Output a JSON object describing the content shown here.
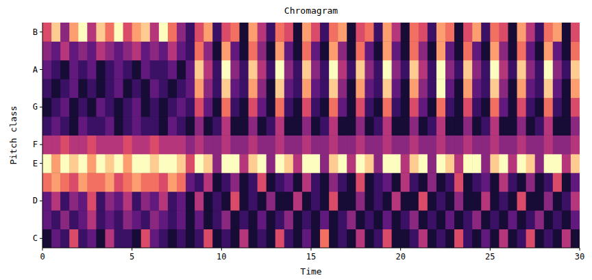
{
  "chart_data": {
    "type": "heatmap",
    "title": "Chromagram",
    "x_label": "Time",
    "y_label": "Pitch class",
    "categories": [
      "C",
      null,
      "D",
      null,
      "E",
      "F",
      null,
      "G",
      null,
      "A",
      null,
      "B"
    ],
    "x": [
      0,
      0.5,
      1,
      1.5,
      2,
      2.5,
      3,
      3.5,
      4,
      4.5,
      5,
      5.5,
      6,
      6.5,
      7,
      7.5,
      8,
      8.5,
      9,
      9.5,
      10,
      10.5,
      11,
      11.5,
      12,
      12.5,
      13,
      13.5,
      14,
      14.5,
      15,
      15.5,
      16,
      16.5,
      17,
      17.5,
      18,
      18.5,
      19,
      19.5,
      20,
      20.5,
      21,
      21.5,
      22,
      22.5,
      23,
      23.5,
      24,
      24.5,
      25,
      25.5,
      26,
      26.5,
      27,
      27.5,
      28,
      28.5,
      29,
      29.5
    ],
    "xlim": [
      0,
      30
    ],
    "xticks": [
      0,
      5,
      10,
      15,
      20,
      25,
      30
    ],
    "zlim": [
      0,
      1
    ],
    "cells": [
      [
        0.1,
        0.3,
        0.2,
        0.6,
        0.2,
        0.3,
        0.1,
        0.5,
        0.2,
        0.2,
        0.1,
        0.6,
        0.3,
        0.2,
        0.1,
        0.2,
        0.1,
        0.2,
        0.6,
        0.1,
        0.2,
        0.1,
        0.5,
        0.1,
        0.2,
        0.1,
        0.6,
        0.2,
        0.1,
        0.3,
        0.1,
        0.7,
        0.1,
        0.2,
        0.1,
        0.5,
        0.1,
        0.2,
        0.6,
        0.1,
        0.1,
        0.2,
        0.5,
        0.1,
        0.2,
        0.1,
        0.6,
        0.2,
        0.1,
        0.3,
        0.1,
        0.5,
        0.1,
        0.2,
        0.6,
        0.1,
        0.2,
        0.1,
        0.5,
        0.1
      ],
      [
        0.3,
        0.2,
        0.4,
        0.2,
        0.3,
        0.5,
        0.2,
        0.3,
        0.2,
        0.4,
        0.3,
        0.2,
        0.4,
        0.3,
        0.2,
        0.3,
        0.1,
        0.3,
        0.1,
        0.2,
        0.4,
        0.1,
        0.2,
        0.1,
        0.3,
        0.1,
        0.2,
        0.4,
        0.1,
        0.2,
        0.1,
        0.3,
        0.1,
        0.2,
        0.4,
        0.1,
        0.2,
        0.1,
        0.3,
        0.1,
        0.2,
        0.4,
        0.1,
        0.2,
        0.1,
        0.3,
        0.1,
        0.2,
        0.4,
        0.1,
        0.2,
        0.1,
        0.3,
        0.1,
        0.2,
        0.4,
        0.1,
        0.2,
        0.1,
        0.3
      ],
      [
        0.3,
        0.5,
        0.2,
        0.4,
        0.3,
        0.6,
        0.2,
        0.4,
        0.3,
        0.5,
        0.2,
        0.4,
        0.3,
        0.5,
        0.2,
        0.3,
        0.1,
        0.5,
        0.1,
        0.2,
        0.1,
        0.6,
        0.1,
        0.2,
        0.1,
        0.4,
        0.1,
        0.1,
        0.5,
        0.1,
        0.2,
        0.1,
        0.6,
        0.1,
        0.1,
        0.4,
        0.1,
        0.2,
        0.1,
        0.5,
        0.1,
        0.1,
        0.6,
        0.1,
        0.2,
        0.1,
        0.4,
        0.1,
        0.1,
        0.5,
        0.1,
        0.2,
        0.1,
        0.6,
        0.1,
        0.1,
        0.4,
        0.1,
        0.2,
        0.5
      ],
      [
        0.7,
        0.8,
        0.7,
        0.6,
        0.8,
        0.7,
        0.7,
        0.8,
        0.6,
        0.7,
        0.8,
        0.7,
        0.7,
        0.6,
        0.8,
        0.7,
        0.3,
        0.2,
        0.5,
        0.1,
        0.2,
        0.4,
        0.1,
        0.2,
        0.6,
        0.1,
        0.2,
        0.3,
        0.1,
        0.5,
        0.2,
        0.1,
        0.4,
        0.2,
        0.1,
        0.6,
        0.1,
        0.2,
        0.3,
        0.1,
        0.5,
        0.2,
        0.1,
        0.4,
        0.1,
        0.2,
        0.6,
        0.1,
        0.2,
        0.3,
        0.1,
        0.5,
        0.2,
        0.1,
        0.4,
        0.1,
        0.2,
        0.6,
        0.1,
        0.3
      ],
      [
        1.0,
        0.8,
        1.0,
        0.9,
        1.0,
        0.8,
        1.0,
        0.9,
        1.0,
        0.8,
        1.0,
        1.0,
        0.9,
        1.0,
        1.0,
        0.9,
        0.6,
        1.0,
        0.9,
        0.4,
        1.0,
        1.0,
        0.5,
        0.9,
        1.0,
        0.4,
        1.0,
        0.9,
        0.5,
        1.0,
        1.0,
        0.4,
        0.9,
        1.0,
        0.5,
        1.0,
        0.9,
        0.4,
        1.0,
        1.0,
        0.5,
        0.9,
        1.0,
        0.4,
        1.0,
        0.9,
        0.5,
        1.0,
        1.0,
        0.4,
        0.9,
        1.0,
        0.5,
        1.0,
        0.9,
        0.4,
        1.0,
        1.0,
        0.5,
        0.9
      ],
      [
        0.5,
        0.5,
        0.6,
        0.5,
        0.5,
        0.6,
        0.5,
        0.5,
        0.5,
        0.6,
        0.5,
        0.5,
        0.6,
        0.5,
        0.5,
        0.5,
        0.4,
        0.5,
        0.4,
        0.4,
        0.5,
        0.4,
        0.4,
        0.5,
        0.4,
        0.4,
        0.5,
        0.4,
        0.4,
        0.5,
        0.4,
        0.4,
        0.5,
        0.4,
        0.4,
        0.5,
        0.4,
        0.4,
        0.5,
        0.4,
        0.4,
        0.5,
        0.4,
        0.4,
        0.5,
        0.4,
        0.4,
        0.5,
        0.4,
        0.4,
        0.5,
        0.4,
        0.4,
        0.5,
        0.4,
        0.4,
        0.5,
        0.4,
        0.4,
        0.5
      ],
      [
        0.2,
        0.3,
        0.2,
        0.1,
        0.3,
        0.2,
        0.2,
        0.3,
        0.1,
        0.2,
        0.3,
        0.2,
        0.2,
        0.1,
        0.3,
        0.2,
        0.1,
        0.4,
        0.1,
        0.2,
        0.5,
        0.1,
        0.1,
        0.4,
        0.1,
        0.2,
        0.5,
        0.1,
        0.1,
        0.4,
        0.1,
        0.2,
        0.5,
        0.1,
        0.1,
        0.4,
        0.1,
        0.2,
        0.5,
        0.1,
        0.1,
        0.4,
        0.1,
        0.2,
        0.5,
        0.1,
        0.1,
        0.4,
        0.1,
        0.2,
        0.5,
        0.1,
        0.1,
        0.4,
        0.1,
        0.2,
        0.5,
        0.1,
        0.1,
        0.4
      ],
      [
        0.1,
        0.2,
        0.3,
        0.1,
        0.2,
        0.1,
        0.3,
        0.2,
        0.1,
        0.2,
        0.3,
        0.1,
        0.2,
        0.1,
        0.2,
        0.3,
        0.2,
        0.6,
        0.3,
        0.1,
        0.7,
        0.2,
        0.1,
        0.6,
        0.3,
        0.1,
        0.7,
        0.2,
        0.1,
        0.6,
        0.2,
        0.1,
        0.7,
        0.3,
        0.1,
        0.6,
        0.2,
        0.1,
        0.7,
        0.2,
        0.1,
        0.6,
        0.3,
        0.1,
        0.7,
        0.2,
        0.1,
        0.6,
        0.2,
        0.1,
        0.7,
        0.3,
        0.1,
        0.6,
        0.2,
        0.1,
        0.7,
        0.2,
        0.1,
        0.6
      ],
      [
        0.2,
        0.1,
        0.2,
        0.3,
        0.1,
        0.2,
        0.1,
        0.2,
        0.3,
        0.1,
        0.2,
        0.1,
        0.3,
        0.2,
        0.1,
        0.2,
        0.3,
        0.8,
        0.4,
        0.2,
        0.9,
        0.3,
        0.2,
        0.8,
        0.4,
        0.1,
        0.9,
        0.3,
        0.2,
        0.8,
        0.3,
        0.2,
        0.9,
        0.4,
        0.1,
        0.8,
        0.3,
        0.2,
        0.9,
        0.3,
        0.1,
        0.8,
        0.4,
        0.2,
        1.0,
        0.3,
        0.1,
        0.8,
        0.3,
        0.2,
        0.9,
        0.4,
        0.1,
        0.8,
        0.3,
        0.2,
        0.9,
        0.3,
        0.1,
        0.8
      ],
      [
        0.3,
        0.2,
        0.1,
        0.3,
        0.2,
        0.3,
        0.1,
        0.2,
        0.3,
        0.2,
        0.1,
        0.3,
        0.2,
        0.2,
        0.3,
        0.1,
        0.3,
        0.9,
        0.5,
        0.2,
        1.0,
        0.4,
        0.2,
        0.9,
        0.5,
        0.2,
        1.0,
        0.4,
        0.2,
        0.9,
        0.4,
        0.2,
        1.0,
        0.5,
        0.2,
        0.9,
        0.4,
        0.2,
        1.0,
        0.4,
        0.2,
        0.9,
        0.5,
        0.2,
        1.0,
        0.4,
        0.2,
        0.9,
        0.4,
        0.2,
        1.0,
        0.5,
        0.2,
        0.9,
        0.4,
        0.2,
        1.0,
        0.4,
        0.2,
        0.9
      ],
      [
        0.4,
        0.3,
        0.5,
        0.3,
        0.4,
        0.3,
        0.5,
        0.4,
        0.3,
        0.4,
        0.5,
        0.3,
        0.4,
        0.3,
        0.5,
        0.3,
        0.2,
        0.7,
        0.4,
        0.1,
        0.8,
        0.3,
        0.1,
        0.7,
        0.4,
        0.1,
        0.8,
        0.3,
        0.1,
        0.7,
        0.3,
        0.1,
        0.8,
        0.4,
        0.1,
        0.7,
        0.3,
        0.1,
        0.8,
        0.3,
        0.1,
        0.7,
        0.4,
        0.1,
        0.8,
        0.3,
        0.1,
        0.7,
        0.3,
        0.1,
        0.8,
        0.4,
        0.1,
        0.7,
        0.3,
        0.1,
        0.8,
        0.3,
        0.1,
        0.7
      ],
      [
        0.6,
        0.9,
        0.4,
        0.8,
        1.0,
        0.5,
        0.9,
        0.7,
        1.0,
        0.6,
        0.8,
        0.9,
        0.5,
        1.0,
        0.7,
        0.4,
        0.2,
        0.6,
        0.8,
        0.2,
        0.6,
        0.7,
        0.1,
        0.8,
        0.5,
        0.2,
        0.7,
        0.6,
        0.1,
        0.8,
        0.6,
        0.2,
        0.7,
        0.8,
        0.1,
        0.6,
        0.7,
        0.2,
        0.8,
        0.5,
        0.1,
        0.7,
        0.6,
        0.2,
        0.8,
        0.7,
        0.1,
        0.6,
        0.8,
        0.2,
        0.7,
        0.6,
        0.1,
        0.8,
        0.5,
        0.2,
        0.7,
        0.8,
        0.1,
        0.6
      ]
    ]
  }
}
